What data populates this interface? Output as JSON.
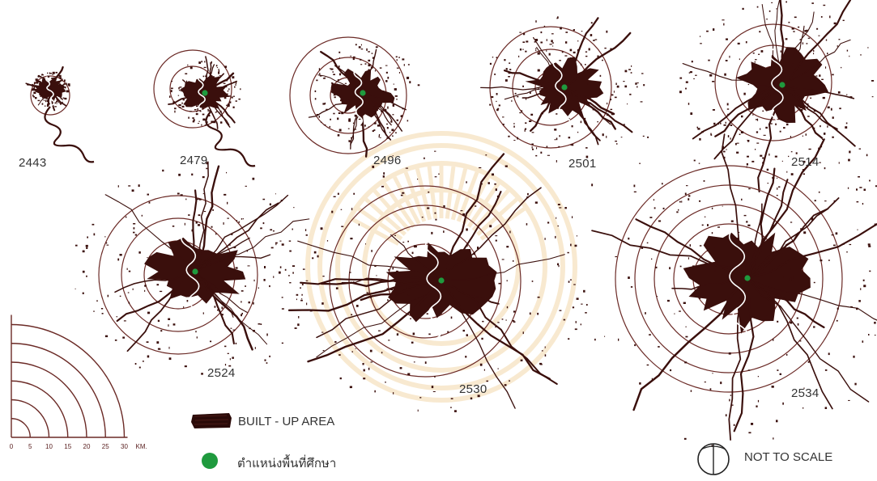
{
  "colors": {
    "built_up": "#3a0f0c",
    "ring": "#6b2a26",
    "study_site": "#1f9a3e",
    "label_text": "#333333",
    "watermark": "#e9b35a"
  },
  "maps": [
    {
      "year": "2443",
      "rings": 1,
      "growth_stage": 1
    },
    {
      "year": "2479",
      "rings": 2,
      "growth_stage": 2
    },
    {
      "year": "2496",
      "rings": 3,
      "growth_stage": 3
    },
    {
      "year": "2501",
      "rings": 3,
      "growth_stage": 4
    },
    {
      "year": "2514",
      "rings": 3,
      "growth_stage": 5
    },
    {
      "year": "2524",
      "rings": 4,
      "growth_stage": 6
    },
    {
      "year": "2530",
      "rings": 5,
      "growth_stage": 7
    },
    {
      "year": "2534",
      "rings": 6,
      "growth_stage": 8
    }
  ],
  "scale_bar": {
    "ticks": [
      "0",
      "5",
      "10",
      "15",
      "20",
      "25",
      "30"
    ],
    "unit": "KM."
  },
  "legend": {
    "built_up_label": "BUILT - UP AREA",
    "study_site_label": "ตำแหน่งพื้นที่ศึกษา"
  },
  "north_note": "NOT TO SCALE",
  "watermark_icon": "university-seal-icon"
}
